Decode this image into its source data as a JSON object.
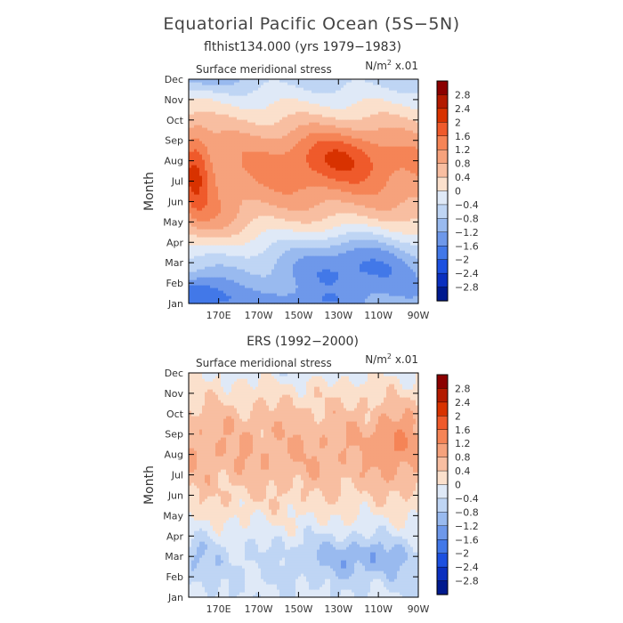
{
  "figure": {
    "title": "Equatorial Pacific Ocean (5S−5N)"
  },
  "chart_data": [
    {
      "type": "heatmap",
      "subtitle": "flthist134.000 (yrs 1979−1983)",
      "panel_label": "Surface meridional stress",
      "units_base": "N/m",
      "units_sup": "2",
      "units_tail": " x.01",
      "ylabel": "Month",
      "months": [
        "Jan",
        "Feb",
        "Mar",
        "Apr",
        "May",
        "Jun",
        "Jul",
        "Aug",
        "Sep",
        "Oct",
        "Nov",
        "Dec"
      ],
      "lon_labels": [
        "170E",
        "170W",
        "150W",
        "130W",
        "110W",
        "90W"
      ],
      "lon_range": [
        155,
        270
      ],
      "lon_ticks": [
        170,
        190,
        210,
        230,
        250,
        270
      ],
      "model": "sim"
    },
    {
      "type": "heatmap",
      "subtitle": "ERS (1992−2000)",
      "panel_label": "Surface meridional stress",
      "units_base": "N/m",
      "units_sup": "2",
      "units_tail": " x.01",
      "ylabel": "Month",
      "months": [
        "Jan",
        "Feb",
        "Mar",
        "Apr",
        "May",
        "Jun",
        "Jul",
        "Aug",
        "Sep",
        "Oct",
        "Nov",
        "Dec"
      ],
      "lon_labels": [
        "170E",
        "170W",
        "150W",
        "130W",
        "110W",
        "90W"
      ],
      "lon_range": [
        155,
        270
      ],
      "lon_ticks": [
        170,
        190,
        210,
        230,
        250,
        270
      ],
      "model": "obs"
    }
  ],
  "colorbar": {
    "labels": [
      "2.8",
      "2.4",
      "2",
      "1.6",
      "1.2",
      "0.8",
      "0.4",
      "0",
      "−0.4",
      "−0.8",
      "−1.2",
      "−1.6",
      "−2",
      "−2.4",
      "−2.8"
    ],
    "levels": [
      -2.8,
      -2.4,
      -2.0,
      -1.6,
      -1.2,
      -0.8,
      -0.4,
      0,
      0.4,
      0.8,
      1.2,
      1.6,
      2.0,
      2.4,
      2.8
    ],
    "colors": [
      "#8b0000",
      "#b31a00",
      "#d83200",
      "#ef5a2b",
      "#f58456",
      "#f6a27c",
      "#f8bea1",
      "#fbe0cc",
      "#dfe9f7",
      "#bfd5f4",
      "#99baef",
      "#6e98ea",
      "#4278e8",
      "#1c50e0",
      "#0a2fbf",
      "#001a8e"
    ]
  }
}
